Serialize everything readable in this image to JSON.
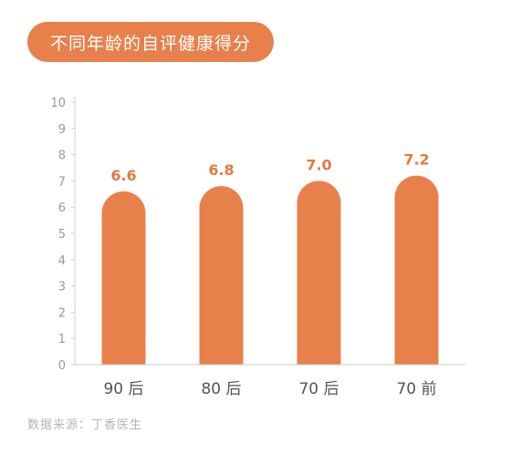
{
  "chart_data": {
    "type": "bar",
    "title": "不同年龄的自评健康得分",
    "categories": [
      "90 后",
      "80 后",
      "70 后",
      "70 前"
    ],
    "values": [
      6.6,
      6.8,
      7.0,
      7.2
    ],
    "value_labels": [
      "6.6",
      "6.8",
      "7.0",
      "7.2"
    ],
    "ylim": [
      0,
      10
    ],
    "yticks": [
      0,
      1,
      2,
      3,
      4,
      5,
      6,
      7,
      8,
      9,
      10
    ],
    "grid": false,
    "legend": "none",
    "xlabel": "",
    "ylabel": ""
  },
  "colors": {
    "bar": "#e8804b",
    "title_bg": "#e8804b",
    "value_label": "#e07a43",
    "axis": "#cccccc"
  },
  "source": "数据来源：丁香医生"
}
